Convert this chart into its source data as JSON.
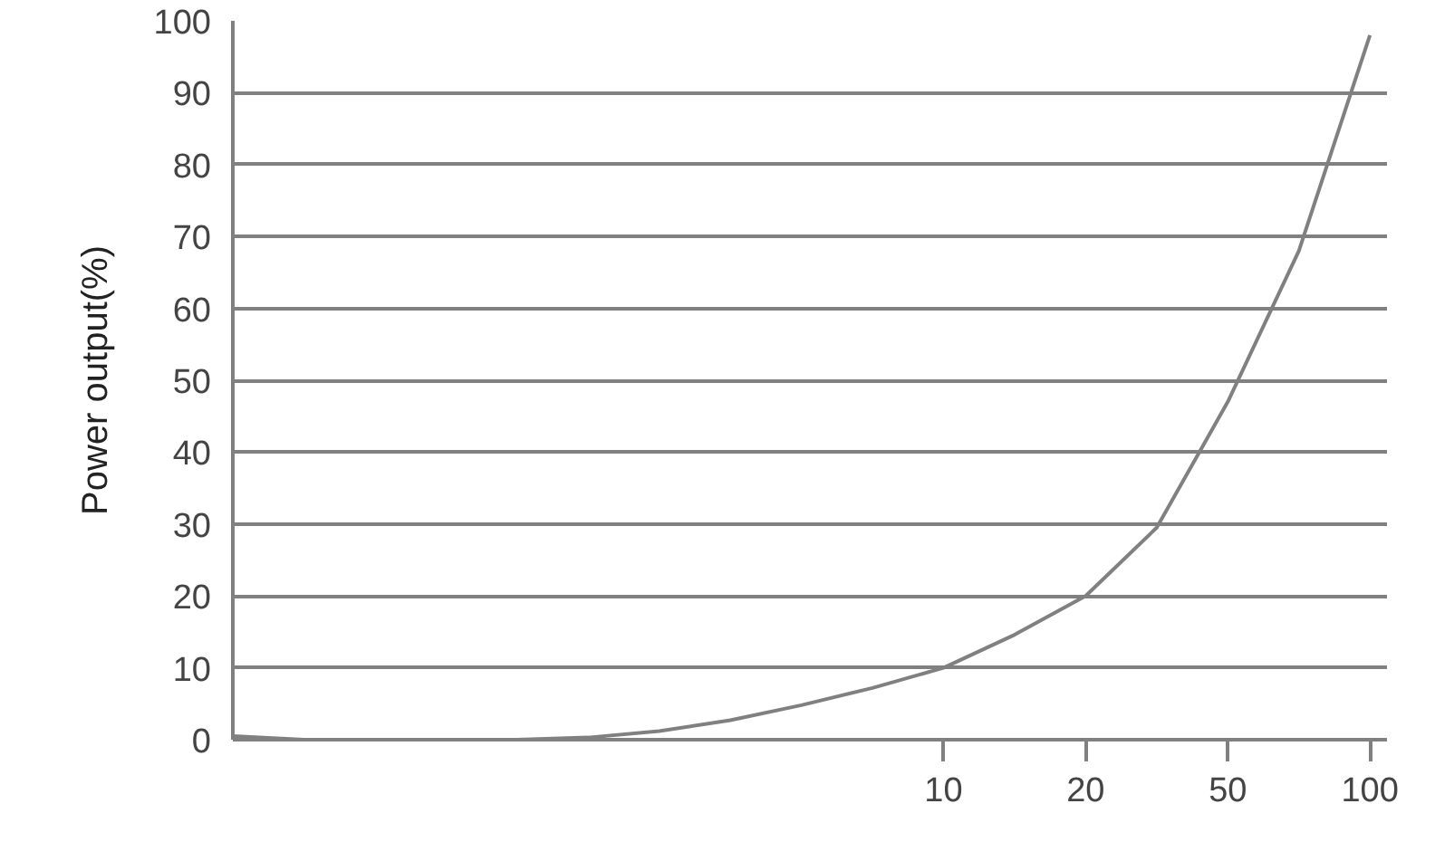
{
  "chart_data": {
    "type": "line",
    "ylabel": "Power output(%)",
    "categories": [
      null,
      null,
      null,
      null,
      null,
      null,
      null,
      null,
      null,
      null,
      "10",
      null,
      "20",
      null,
      "50",
      null,
      "100"
    ],
    "values": [
      0.5,
      0,
      0,
      0,
      0,
      0.3,
      1.2,
      2.7,
      4.8,
      7.2,
      10,
      14.6,
      20,
      29.5,
      47,
      68,
      98
    ],
    "color": "#808080",
    "ylim": [
      0,
      100
    ],
    "yticks": [
      0,
      10,
      20,
      30,
      40,
      50,
      60,
      70,
      80,
      90,
      100
    ],
    "grid": "y"
  }
}
